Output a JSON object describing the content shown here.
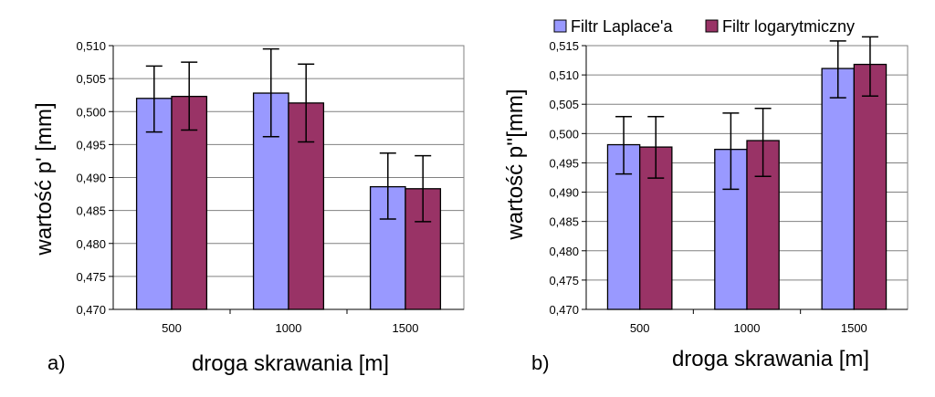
{
  "legend": {
    "items": [
      {
        "label": "Filtr Laplace'a",
        "color": "#9999ff"
      },
      {
        "label": "Filtr logarytmiczny",
        "color": "#993366"
      }
    ]
  },
  "chart_data": [
    {
      "type": "bar",
      "panel_label": "a)",
      "title": "",
      "xlabel": "droga skrawania [m]",
      "ylabel": "wartość p' [mm]",
      "categories": [
        "500",
        "1000",
        "1500"
      ],
      "ylim": [
        0.47,
        0.51
      ],
      "yticks": [
        "0,470",
        "0,475",
        "0,480",
        "0,485",
        "0,490",
        "0,495",
        "0,500",
        "0,505",
        "0,510"
      ],
      "grid": true,
      "series": [
        {
          "name": "Filtr Laplace'a",
          "values": [
            0.502,
            0.5028,
            0.4886
          ],
          "err_low": [
            0.4969,
            0.4962,
            0.4837
          ],
          "err_high": [
            0.5069,
            0.5095,
            0.4937
          ]
        },
        {
          "name": "Filtr logarytmiczny",
          "values": [
            0.5023,
            0.5013,
            0.4883
          ],
          "err_low": [
            0.4972,
            0.4954,
            0.4833
          ],
          "err_high": [
            0.5075,
            0.5072,
            0.4933
          ]
        }
      ]
    },
    {
      "type": "bar",
      "panel_label": "b)",
      "title": "",
      "xlabel": "droga skrawania [m]",
      "ylabel": "wartość p''[mm]",
      "categories": [
        "500",
        "1000",
        "1500"
      ],
      "ylim": [
        0.47,
        0.515
      ],
      "yticks": [
        "0,470",
        "0,475",
        "0,480",
        "0,485",
        "0,490",
        "0,495",
        "0,500",
        "0,505",
        "0,510",
        "0,515"
      ],
      "grid": true,
      "series": [
        {
          "name": "Filtr Laplace'a",
          "values": [
            0.4981,
            0.4973,
            0.5111
          ],
          "err_low": [
            0.4931,
            0.4905,
            0.5061
          ],
          "err_high": [
            0.5029,
            0.5035,
            0.5158
          ]
        },
        {
          "name": "Filtr logarytmiczny",
          "values": [
            0.4977,
            0.4988,
            0.5118
          ],
          "err_low": [
            0.4924,
            0.4927,
            0.5064
          ],
          "err_high": [
            0.5029,
            0.5043,
            0.5165
          ]
        }
      ]
    }
  ]
}
